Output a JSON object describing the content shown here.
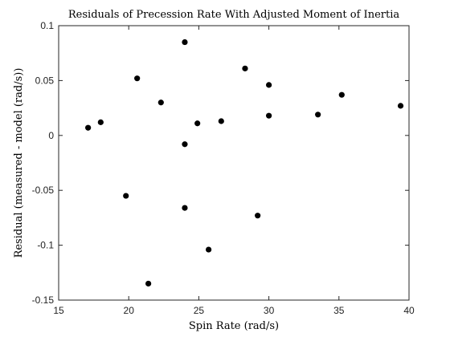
{
  "chart_data": {
    "type": "scatter",
    "title": "Residuals of Precession Rate With Adjusted Moment of Inertia",
    "xlabel": "Spin Rate (rad/s)",
    "ylabel": "Residual (measured - model (rad/s))",
    "xlim": [
      15,
      40
    ],
    "ylim": [
      -0.15,
      0.1
    ],
    "xticks": [
      15,
      20,
      25,
      30,
      35,
      40
    ],
    "xtick_labels": [
      "15",
      "20",
      "25",
      "30",
      "35",
      "40"
    ],
    "yticks": [
      -0.15,
      -0.1,
      -0.05,
      0,
      0.05,
      0.1
    ],
    "ytick_labels": [
      "-0.15",
      "-0.1",
      "-0.05",
      "0",
      "0.05",
      "0.1"
    ],
    "grid": false,
    "legend": "none",
    "marker_color": "#000000",
    "points": [
      {
        "x": 17.1,
        "y": 0.007
      },
      {
        "x": 18.0,
        "y": 0.012
      },
      {
        "x": 19.8,
        "y": -0.055
      },
      {
        "x": 20.6,
        "y": 0.052
      },
      {
        "x": 21.4,
        "y": -0.135
      },
      {
        "x": 22.3,
        "y": 0.03
      },
      {
        "x": 24.0,
        "y": 0.085
      },
      {
        "x": 24.0,
        "y": -0.008
      },
      {
        "x": 24.0,
        "y": -0.066
      },
      {
        "x": 24.9,
        "y": 0.011
      },
      {
        "x": 25.7,
        "y": -0.104
      },
      {
        "x": 26.6,
        "y": 0.013
      },
      {
        "x": 28.3,
        "y": 0.061
      },
      {
        "x": 29.2,
        "y": -0.073
      },
      {
        "x": 30.0,
        "y": 0.046
      },
      {
        "x": 30.0,
        "y": 0.018
      },
      {
        "x": 33.5,
        "y": 0.019
      },
      {
        "x": 35.2,
        "y": 0.037
      },
      {
        "x": 39.4,
        "y": 0.027
      }
    ]
  }
}
